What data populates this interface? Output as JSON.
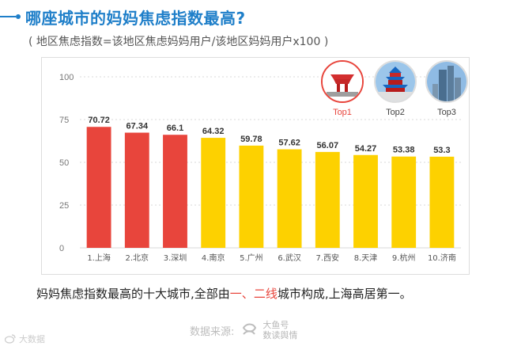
{
  "title": "哪座城市的妈妈焦虑指数最高?",
  "subtitle": "( 地区焦虑指数=该地区焦虑妈妈用户/该地区妈妈用户x100 )",
  "colors": {
    "accent": "#1f7fc9",
    "red": "#e8453c",
    "yellow": "#fdd100",
    "grid": "#d8d8d8"
  },
  "chart_data": {
    "type": "bar",
    "title": "",
    "xlabel": "",
    "ylabel": "",
    "categories": [
      "1.上海",
      "2.北京",
      "3.深圳",
      "4.南京",
      "5.广州",
      "6.武汉",
      "7.西安",
      "8.天津",
      "9.杭州",
      "10.济南"
    ],
    "values": [
      70.72,
      67.34,
      66.1,
      64.32,
      59.78,
      57.62,
      56.07,
      54.27,
      53.38,
      53.3
    ],
    "value_labels": [
      "70.72",
      "67.34",
      "66.1",
      "64.32",
      "59.78",
      "57.62",
      "56.07",
      "54.27",
      "53.38",
      "53.3"
    ],
    "bar_colors": [
      "red",
      "red",
      "red",
      "yellow",
      "yellow",
      "yellow",
      "yellow",
      "yellow",
      "yellow",
      "yellow"
    ],
    "ylim": [
      0,
      100
    ],
    "yticks": [
      "0",
      "25",
      "50",
      "75",
      "100"
    ],
    "grid": true
  },
  "top_badges": [
    {
      "label": "Top1",
      "icon": "china-pavilion-icon"
    },
    {
      "label": "Top2",
      "icon": "temple-of-heaven-icon"
    },
    {
      "label": "Top3",
      "icon": "skyscraper-icon"
    }
  ],
  "conclusion": {
    "part1": "妈妈焦虑指数最高的十大城市,全部由",
    "hl1": "一",
    "sep": "、",
    "hl2": "二线",
    "part2": "城市构成,上海高居第一。"
  },
  "source": {
    "label": "数据来源:",
    "brand_line1": "大鱼号",
    "brand_line2": "数读舆情",
    "icon": "fish-logo-icon"
  },
  "watermark": {
    "text": "大数据",
    "icon": "weibo-icon"
  }
}
